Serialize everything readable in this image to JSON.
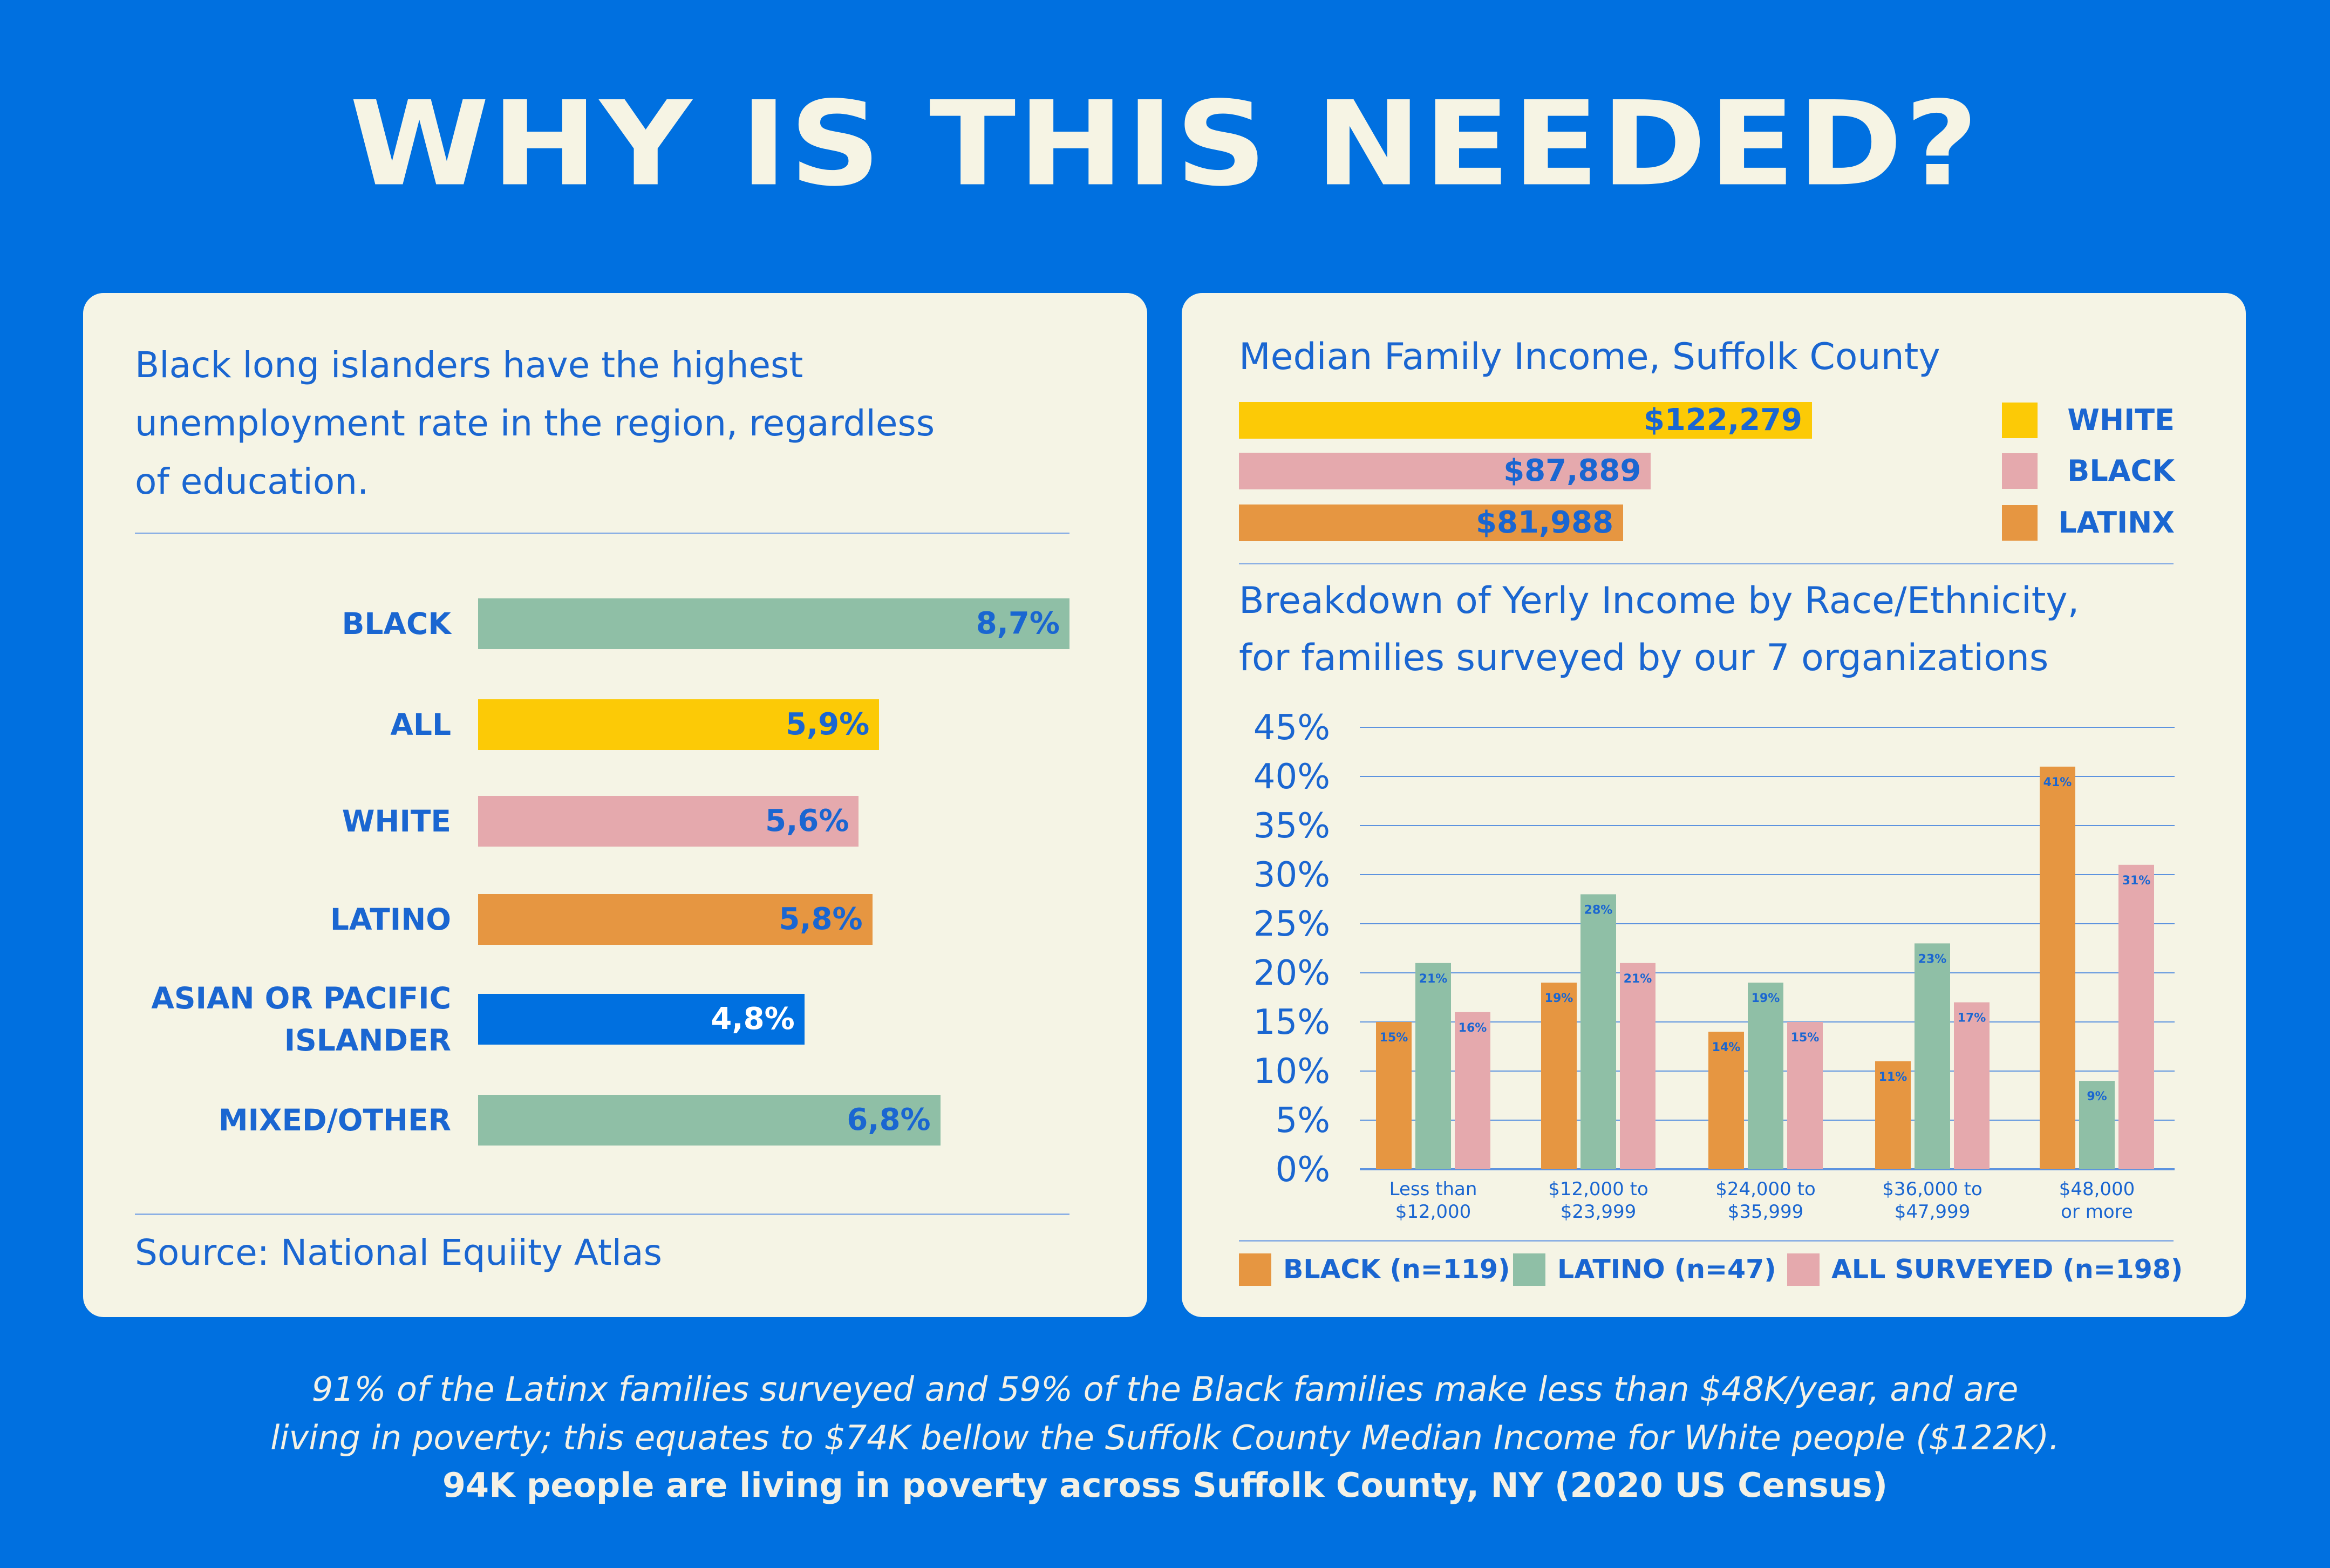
{
  "title": "WHY IS THIS NEEDED?",
  "left": {
    "intro_lines": [
      "Black long islanders have the highest",
      "unemployment rate in the region, regardless",
      "of education."
    ],
    "source": "Source: National Equiity Atlas"
  },
  "right": {
    "income_title": "Median Family Income, Suffolk County",
    "breakdown_title_lines": [
      "Breakdown of Yerly Income by Race/Ethnicity,",
      "for families surveyed by our 7 organizations"
    ]
  },
  "colors": {
    "background": "#0070e0",
    "panel": "#f5f4e5",
    "text_blue": "#1a66d1",
    "yellow": "#fcca06",
    "pink": "#e5a9ad",
    "orange": "#e69641",
    "green": "#8fbfa6",
    "blue_bar": "#0070e0"
  },
  "chart_data": [
    {
      "type": "bar",
      "orientation": "horizontal",
      "title": "",
      "categories": [
        "BLACK",
        "ALL",
        "WHITE",
        "LATINO",
        "ASIAN OR PACIFIC ISLANDER",
        "MIXED/OTHER"
      ],
      "category_lines": [
        [
          "BLACK"
        ],
        [
          "ALL"
        ],
        [
          "WHITE"
        ],
        [
          "LATINO"
        ],
        [
          "ASIAN OR PACIFIC",
          "ISLANDER"
        ],
        [
          "MIXED/OTHER"
        ]
      ],
      "values": [
        8.7,
        5.9,
        5.6,
        5.8,
        4.8,
        6.8
      ],
      "value_labels": [
        "8,7%",
        "5,9%",
        "5,6%",
        "5,8%",
        "4,8%",
        "6,8%"
      ],
      "bar_colors": [
        "#8fbfa6",
        "#fcca06",
        "#e5a9ad",
        "#e69641",
        "#0070e0",
        "#8fbfa6"
      ],
      "label_colors": [
        "#1a66d1",
        "#1a66d1",
        "#1a66d1",
        "#1a66d1",
        "#ffffff",
        "#1a66d1"
      ],
      "xlim": [
        0,
        8.7
      ],
      "grid": false
    },
    {
      "type": "bar",
      "orientation": "horizontal",
      "title": "Median Family Income, Suffolk County",
      "categories": [
        "WHITE",
        "BLACK",
        "LATINX"
      ],
      "values": [
        122279,
        87889,
        81988
      ],
      "value_labels": [
        "$122,279",
        "$87,889",
        "$81,988"
      ],
      "bar_colors": [
        "#fcca06",
        "#e5a9ad",
        "#e69641"
      ],
      "legend_position": "right"
    },
    {
      "type": "bar",
      "title": "Breakdown of Yerly Income by Race/Ethnicity, for families surveyed by our 7 organizations",
      "categories": [
        [
          "Less than",
          "$12,000"
        ],
        [
          "$12,000 to",
          "$23,999"
        ],
        [
          "$24,000 to",
          "$35,999"
        ],
        [
          "$36,000 to",
          "$47,999"
        ],
        [
          "$48,000",
          "or more"
        ]
      ],
      "yticks": [
        "45%",
        "40%",
        "35%",
        "30%",
        "25%",
        "20%",
        "15%",
        "10%",
        "5%",
        "0%"
      ],
      "ylim": [
        0,
        45
      ],
      "grid": true,
      "legend_position": "bottom",
      "series": [
        {
          "name": "BLACK (n=119)",
          "color": "#e69641",
          "values": [
            15,
            19,
            14,
            11,
            41
          ],
          "labels": [
            "15%",
            "19%",
            "14%",
            "11%",
            "41%"
          ]
        },
        {
          "name": "LATINO (n=47)",
          "color": "#8fbfa6",
          "values": [
            21,
            28,
            19,
            23,
            9
          ],
          "labels": [
            "21%",
            "28%",
            "19%",
            "23%",
            "9%"
          ]
        },
        {
          "name": "ALL SURVEYED (n=198)",
          "color": "#e5a9ad",
          "values": [
            16,
            21,
            15,
            17,
            31
          ],
          "labels": [
            "16%",
            "21%",
            "15%",
            "17%",
            "31%"
          ]
        }
      ]
    }
  ],
  "footnote": {
    "line1": "91% of the Latinx families surveyed and 59% of the Black families make less than $48K/year, and are",
    "line2": "living in poverty; this equates to $74K bellow the Suffolk County Median Income for White people ($122K).",
    "line3": "94K people are living in poverty across Suffolk County, NY (2020 US Census)"
  }
}
